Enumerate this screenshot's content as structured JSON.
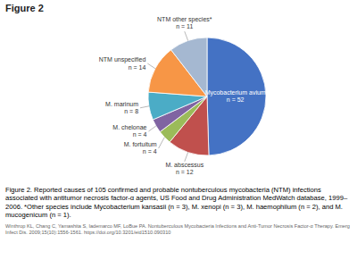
{
  "chart_data": {
    "type": "pie",
    "title": "Figure 2",
    "categories": [
      "Mycobacterium avium\nn = 52",
      "M. abscessus\nn = 12",
      "M. fortuitum\nn = 4",
      "M. chelonae\nn = 4",
      "M. marinum\nn = 8",
      "NTM unspecified\nn = 14",
      "NTM other species*\nn = 11"
    ],
    "values": [
      52,
      12,
      4,
      4,
      8,
      14,
      11
    ],
    "colors": [
      "#4472C4",
      "#C0504D",
      "#9BBB59",
      "#8064A2",
      "#4BACC6",
      "#F79646",
      "#A5B8D1"
    ],
    "annotations": [
      "Figure 2. Reported causes of 105 confirmed and probable nontuberculous mycobacteria (NTM) infections associated with antitumor necrosis factor-α agents, US Food and Drug Administration MedWatch database, 1999–2006. *Other species include Mycobacterium kansasii (n = 3), M. xenopi (n = 3), M. haemophilum (n = 2), and M. mucogenicum (n = 1).",
      "Winthrop KL, Chang C, Yamashita S, Iademarco MF, LoBue PA. Nontuberculous Mycobacteria Infections and Anti-Tumor Necrosis Factor-α Therapy. Emerg Infect Dis. 2009;15(10):1556-1561. https://doi.org/10.3201/eid1510.090310"
    ]
  }
}
